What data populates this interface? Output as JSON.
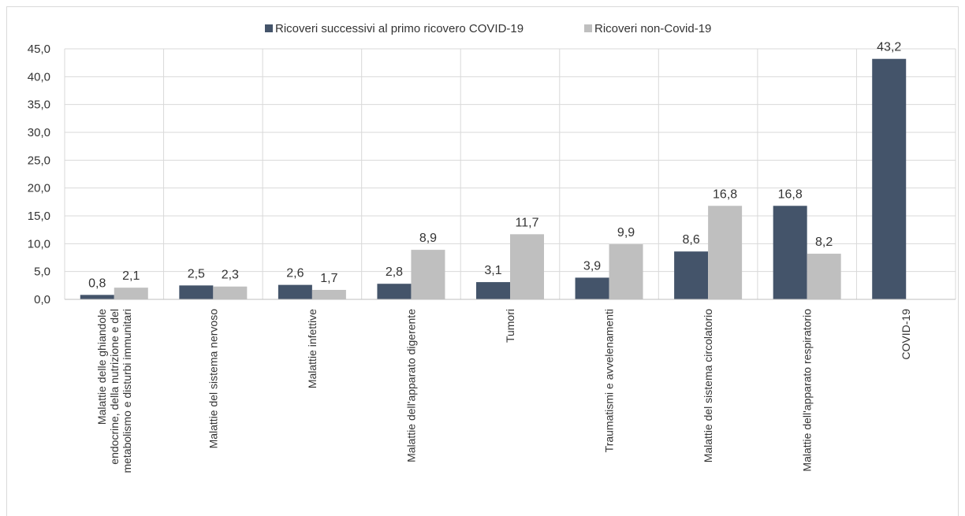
{
  "chart_data": {
    "type": "bar",
    "categories": [
      [
        "Malattie delle ghiandole",
        "endocrine, della nutrizione e del",
        "metabolismo e disturbi immunitari"
      ],
      [
        "Malattie del sistema nervoso"
      ],
      [
        "Malattie infettive"
      ],
      [
        "Malattie dell'apparato digerente"
      ],
      [
        "Tumori"
      ],
      [
        "Traumatismi e avvelenamenti"
      ],
      [
        "Malattie del sistema circolatorio"
      ],
      [
        "Malattie dell'apparato respiratorio"
      ],
      [
        "COVID-19"
      ]
    ],
    "series": [
      {
        "name": "Ricoveri successivi al primo ricovero COVID-19",
        "color": "#44546a",
        "values": [
          0.8,
          2.5,
          2.6,
          2.8,
          3.1,
          3.9,
          8.6,
          16.8,
          43.2
        ],
        "labels": [
          "0,8",
          "2,5",
          "2,6",
          "2,8",
          "3,1",
          "3,9",
          "8,6",
          "16,8",
          "43,2"
        ]
      },
      {
        "name": "Ricoveri non-Covid-19",
        "color": "#bfbfbf",
        "values": [
          2.1,
          2.3,
          1.7,
          8.9,
          11.7,
          9.9,
          16.8,
          8.2,
          null
        ],
        "labels": [
          "2,1",
          "2,3",
          "1,7",
          "8,9",
          "11,7",
          "9,9",
          "16,8",
          "8,2",
          ""
        ]
      }
    ],
    "ylim": [
      0,
      45
    ],
    "yticks": [
      0,
      5,
      10,
      15,
      20,
      25,
      30,
      35,
      40,
      45
    ],
    "ytick_labels": [
      "0,0",
      "5,0",
      "10,0",
      "15,0",
      "20,0",
      "25,0",
      "30,0",
      "35,0",
      "40,0",
      "45,0"
    ],
    "grid": true,
    "legend_position": "top"
  }
}
